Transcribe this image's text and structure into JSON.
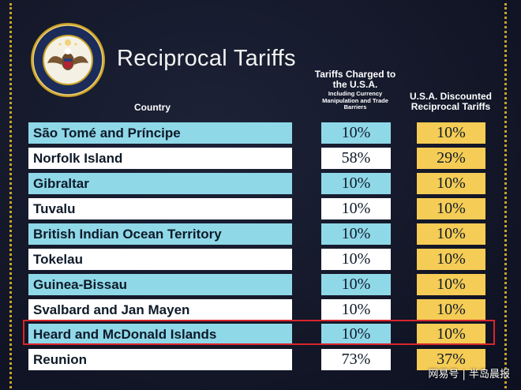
{
  "title": "Reciprocal Tariffs",
  "seal_text": "SEAL OF THE PRESIDENT OF THE UNITED STATES",
  "headers": {
    "country": "Country",
    "charged_main": "Tariffs Charged to the U.S.A.",
    "charged_sub": "Including Currency Manipulation and Trade Barriers",
    "discounted": "U.S.A. Discounted Reciprocal Tariffs"
  },
  "rows": [
    {
      "country": "São Tomé and Príncipe",
      "charged": "10%",
      "discounted": "10%"
    },
    {
      "country": "Norfolk Island",
      "charged": "58%",
      "discounted": "29%"
    },
    {
      "country": "Gibraltar",
      "charged": "10%",
      "discounted": "10%"
    },
    {
      "country": "Tuvalu",
      "charged": "10%",
      "discounted": "10%"
    },
    {
      "country": "British Indian Ocean Territory",
      "charged": "10%",
      "discounted": "10%"
    },
    {
      "country": "Tokelau",
      "charged": "10%",
      "discounted": "10%"
    },
    {
      "country": "Guinea-Bissau",
      "charged": "10%",
      "discounted": "10%"
    },
    {
      "country": "Svalbard and Jan Mayen",
      "charged": "10%",
      "discounted": "10%"
    },
    {
      "country": "Heard and McDonald Islands",
      "charged": "10%",
      "discounted": "10%"
    },
    {
      "country": "Reunion",
      "charged": "73%",
      "discounted": "37%"
    }
  ],
  "highlighted_row": 8,
  "watermark": "网易号 | 半岛晨报",
  "colors": {
    "background": "#141829",
    "row_blue": "#8fd8e8",
    "row_white": "#ffffff",
    "discount_gold": "#f5cc55",
    "highlight_red": "#d8262c",
    "border_gold": "#c9a227"
  }
}
